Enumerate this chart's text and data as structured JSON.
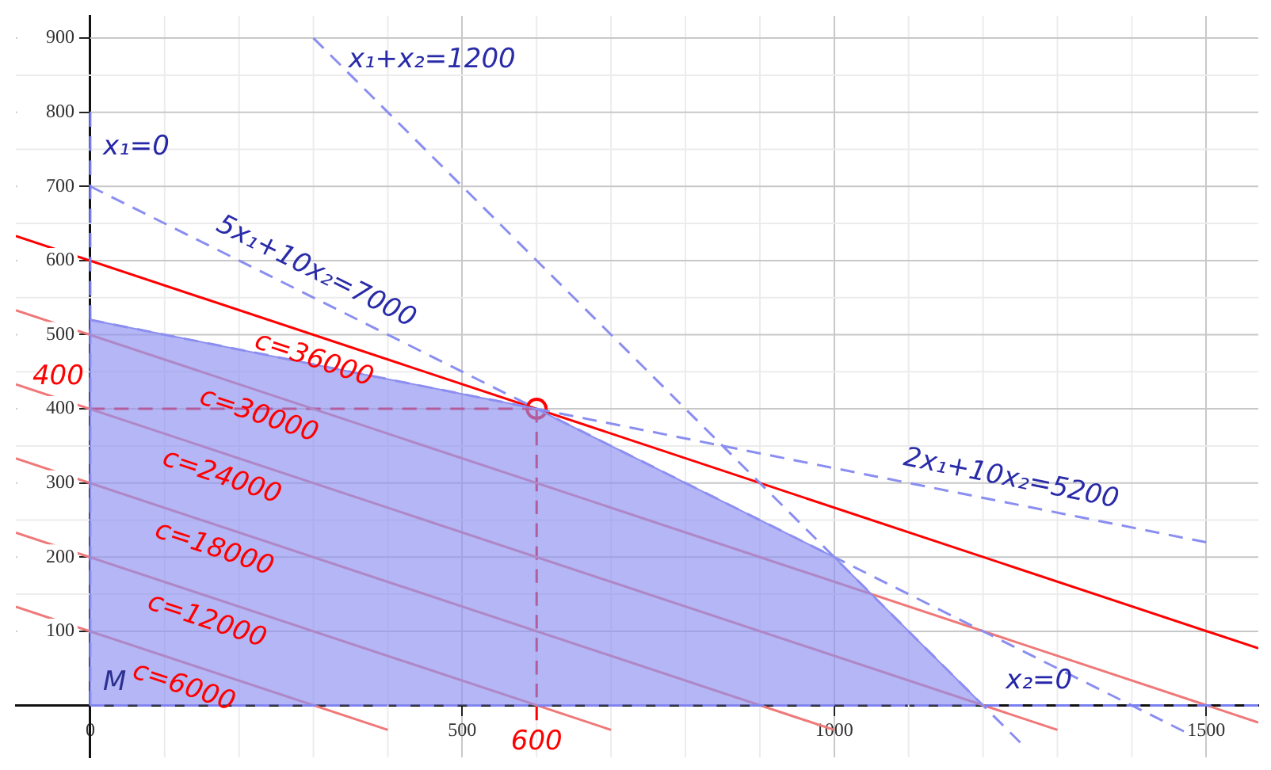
{
  "chart_data": {
    "type": "line",
    "xlim": [
      -100,
      1570
    ],
    "ylim": [
      -70,
      930
    ],
    "xticks": [
      0,
      500,
      1000,
      1500
    ],
    "yticks": [
      100,
      200,
      300,
      400,
      500,
      600,
      700,
      800,
      900
    ],
    "grid": true,
    "legend": false,
    "series": [
      {
        "type": "area",
        "color": "#8c8ff0",
        "x": [
          0,
          0,
          600,
          1000,
          1200
        ],
        "values": [
          0,
          520,
          400,
          200,
          0
        ]
      },
      {
        "color": "#7a7ff0",
        "line_style": "dashed",
        "x": [
          0,
          0
        ],
        "values": [
          0,
          800
        ]
      },
      {
        "color": "#7a7ff0",
        "line_style": "dashed",
        "x": [
          0,
          1570
        ],
        "values": [
          0,
          0
        ]
      },
      {
        "color": "#8a8ef0",
        "line_style": "dashed",
        "x": [
          300,
          1250
        ],
        "values": [
          900,
          -50
        ]
      },
      {
        "color": "#8a8ef0",
        "line_style": "dashed",
        "x": [
          0,
          1470
        ],
        "values": [
          700,
          -35
        ]
      },
      {
        "color": "#8a8ef0",
        "line_style": "dashed",
        "x": [
          0,
          1500
        ],
        "values": [
          520,
          220
        ]
      },
      {
        "color": "#f07878",
        "x": [
          -100,
          400
        ],
        "values": [
          133,
          -33
        ]
      },
      {
        "color": "#f07878",
        "x": [
          -100,
          700
        ],
        "values": [
          233,
          -33
        ]
      },
      {
        "color": "#f07878",
        "x": [
          -100,
          1000
        ],
        "values": [
          333,
          -33
        ]
      },
      {
        "color": "#f07878",
        "x": [
          -100,
          1300
        ],
        "values": [
          433,
          -33
        ]
      },
      {
        "color": "#f07878",
        "x": [
          -100,
          1570
        ],
        "values": [
          533,
          -23
        ]
      },
      {
        "color": "#ff0000",
        "x": [
          -100,
          1570
        ],
        "values": [
          633,
          77
        ]
      },
      {
        "color": "#ff0000",
        "line_style": "dashed",
        "x": [
          0,
          600
        ],
        "values": [
          400,
          400
        ]
      },
      {
        "color": "#ff0000",
        "line_style": "dashed",
        "x": [
          600,
          600
        ],
        "values": [
          400,
          -20
        ]
      },
      {
        "type": "scatter",
        "marker": "circle",
        "color": "#ff0000",
        "x": [
          600
        ],
        "values": [
          400
        ]
      }
    ],
    "annotations": [
      {
        "text": "x₁+x₂=1200",
        "x": 330,
        "y": 870
      },
      {
        "text": "x₁=0",
        "x": 0,
        "y": 753
      },
      {
        "text": "5x₁+10x₂=7000",
        "x": 150,
        "y": 625
      },
      {
        "text": "c=36000",
        "x": 224,
        "y": 525
      },
      {
        "text": "c=30000",
        "x": 150,
        "y": 450
      },
      {
        "text": "c=24000",
        "x": 100,
        "y": 367
      },
      {
        "text": "c=18000",
        "x": 90,
        "y": 270
      },
      {
        "text": "c=12000",
        "x": 80,
        "y": 173
      },
      {
        "text": "c=6000",
        "x": 60,
        "y": 80
      },
      {
        "text": "2x₁+10x₂=5200",
        "x": 1079,
        "y": 304
      },
      {
        "text": "x₂=0",
        "x": 1222,
        "y": 0
      },
      "M",
      {
        "text": "400",
        "x": 0,
        "y": 400
      },
      {
        "text": "600",
        "x": 600,
        "y": -20
      }
    ]
  }
}
